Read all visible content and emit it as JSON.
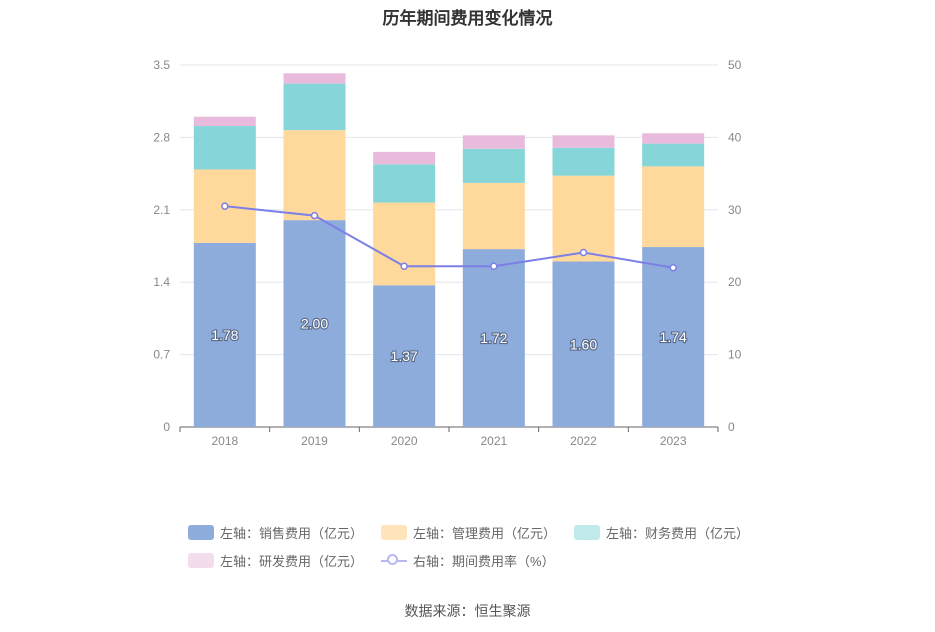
{
  "chart_data": {
    "type": "bar",
    "title": "历年期间费用变化情况",
    "categories": [
      "2018",
      "2019",
      "2020",
      "2021",
      "2022",
      "2023"
    ],
    "stacked": true,
    "series": [
      {
        "name": "左轴：销售费用（亿元）",
        "axis": "left",
        "color": "#8eacdb",
        "legend_color": "#8eacdb",
        "values": [
          1.78,
          2.0,
          1.37,
          1.72,
          1.6,
          1.74
        ],
        "show_labels": true
      },
      {
        "name": "左轴：管理费用（亿元）",
        "axis": "left",
        "color": "#ffd89c",
        "legend_color": "#ffe3bb",
        "values": [
          0.71,
          0.87,
          0.8,
          0.64,
          0.83,
          0.78
        ],
        "show_labels": false
      },
      {
        "name": "左轴：财务费用（亿元）",
        "axis": "left",
        "color": "#86d6d9",
        "legend_color": "#bfe9ea",
        "values": [
          0.42,
          0.45,
          0.37,
          0.33,
          0.27,
          0.22
        ],
        "show_labels": false
      },
      {
        "name": "左轴：研发费用（亿元）",
        "axis": "left",
        "color": "#e8bbdc",
        "legend_color": "#f3dcec",
        "values": [
          0.09,
          0.1,
          0.12,
          0.13,
          0.12,
          0.1
        ],
        "show_labels": false
      }
    ],
    "line_series": {
      "name": "右轴：期间费用率（%）",
      "axis": "right",
      "color": "#7b7fe6",
      "values": [
        30.5,
        29.2,
        22.2,
        22.2,
        24.1,
        22.0
      ]
    },
    "y_left": {
      "min": 0,
      "max": 3.5,
      "ticks": [
        "0",
        "0.7",
        "1.4",
        "2.1",
        "2.8",
        "3.5"
      ]
    },
    "y_right": {
      "min": 0,
      "max": 50,
      "ticks": [
        "0",
        "10",
        "20",
        "30",
        "40",
        "50"
      ]
    },
    "grid": true,
    "legend_position": "bottom"
  },
  "source": "数据来源：恒生聚源"
}
